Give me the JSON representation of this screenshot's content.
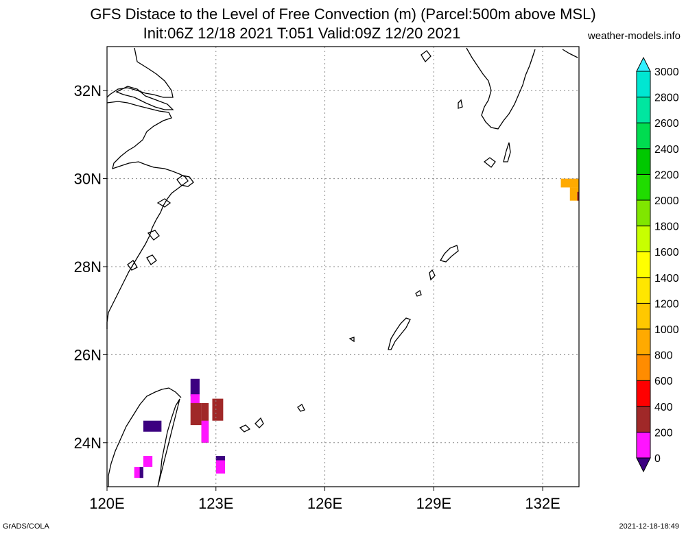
{
  "title": {
    "line1": "GFS Distace to the Level of Free Convection (m) (Parcel:500m above MSL)",
    "line2": "Init:06Z 12/18 2021 T:051 Valid:09Z 12/20 2021"
  },
  "credit": "weather-models.info",
  "footer": {
    "left": "GrADS/COLA",
    "right": "2021-12-18-18:49"
  },
  "map": {
    "lon_range": [
      120,
      133
    ],
    "lat_range": [
      23,
      33
    ],
    "lon_ticks": [
      {
        "value": 120,
        "label": "120E"
      },
      {
        "value": 123,
        "label": "123E"
      },
      {
        "value": 126,
        "label": "126E"
      },
      {
        "value": 129,
        "label": "129E"
      },
      {
        "value": 132,
        "label": "132E"
      }
    ],
    "lat_ticks": [
      {
        "value": 24,
        "label": "24N"
      },
      {
        "value": 26,
        "label": "26N"
      },
      {
        "value": 28,
        "label": "28N"
      },
      {
        "value": 30,
        "label": "30N"
      },
      {
        "value": 32,
        "label": "32N"
      }
    ],
    "grid": true
  },
  "colorbar": {
    "levels": [
      {
        "value": 0,
        "label": "0"
      },
      {
        "value": 200,
        "label": "200"
      },
      {
        "value": 400,
        "label": "400"
      },
      {
        "value": 600,
        "label": "600"
      },
      {
        "value": 800,
        "label": "800"
      },
      {
        "value": 1000,
        "label": "1000"
      },
      {
        "value": 1200,
        "label": "1200"
      },
      {
        "value": 1400,
        "label": "1400"
      },
      {
        "value": 1600,
        "label": "1600"
      },
      {
        "value": 1800,
        "label": "1800"
      },
      {
        "value": 2000,
        "label": "2000"
      },
      {
        "value": 2200,
        "label": "2200"
      },
      {
        "value": 2400,
        "label": "2400"
      },
      {
        "value": 2600,
        "label": "2600"
      },
      {
        "value": 2800,
        "label": "2800"
      },
      {
        "value": 3000,
        "label": "3000"
      }
    ],
    "colors": [
      "#3c0080",
      "#ff14ff",
      "#a02828",
      "#ff0000",
      "#ff8c00",
      "#ffaa00",
      "#ffc800",
      "#ffe600",
      "#ffff00",
      "#c8ff00",
      "#80e600",
      "#20dc00",
      "#00c800",
      "#00dc50",
      "#00e6a0",
      "#00e6d2",
      "#32f0ff"
    ]
  },
  "fields": [
    {
      "lon0": 122.3,
      "lon1": 122.6,
      "lat0": 24.4,
      "lat1": 24.9,
      "level": 2
    },
    {
      "lon0": 122.6,
      "lon1": 122.8,
      "lat0": 24.0,
      "lat1": 24.9,
      "level": 2
    },
    {
      "lon0": 122.9,
      "lon1": 123.2,
      "lat0": 24.5,
      "lat1": 25.0,
      "level": 2
    },
    {
      "lon0": 122.6,
      "lon1": 122.8,
      "lat0": 24.0,
      "lat1": 24.5,
      "level": 1
    },
    {
      "lon0": 122.3,
      "lon1": 122.55,
      "lat0": 25.05,
      "lat1": 25.45,
      "level": 0
    },
    {
      "lon0": 122.3,
      "lon1": 122.55,
      "lat0": 24.9,
      "lat1": 25.1,
      "level": 1
    },
    {
      "lon0": 121.0,
      "lon1": 121.5,
      "lat0": 24.25,
      "lat1": 24.5,
      "level": 0
    },
    {
      "lon0": 121.0,
      "lon1": 121.25,
      "lat0": 23.45,
      "lat1": 23.7,
      "level": 1
    },
    {
      "lon0": 120.75,
      "lon1": 121.0,
      "lat0": 23.2,
      "lat1": 23.45,
      "level": 1
    },
    {
      "lon0": 120.9,
      "lon1": 121.0,
      "lat0": 23.2,
      "lat1": 23.45,
      "level": 0
    },
    {
      "lon0": 123.0,
      "lon1": 123.25,
      "lat0": 23.3,
      "lat1": 23.7,
      "level": 1
    },
    {
      "lon0": 123.0,
      "lon1": 123.25,
      "lat0": 23.6,
      "lat1": 23.7,
      "level": 0
    },
    {
      "lon0": 132.5,
      "lon1": 133.0,
      "lat0": 29.8,
      "lat1": 30.0,
      "level": 5
    },
    {
      "lon0": 132.75,
      "lon1": 133.0,
      "lat0": 29.5,
      "lat1": 29.8,
      "level": 5
    },
    {
      "lon0": 132.95,
      "lon1": 133.0,
      "lat0": 29.5,
      "lat1": 29.7,
      "level": 2
    }
  ]
}
